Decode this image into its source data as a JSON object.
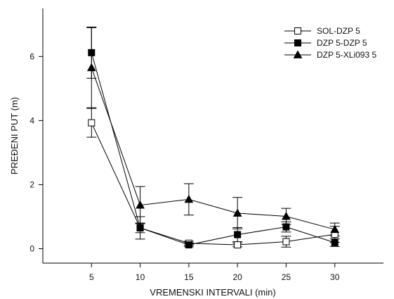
{
  "chart_data": {
    "type": "line",
    "title": "",
    "xlabel": "VREMENSKI INTERVALI (min)",
    "ylabel": "PREĐENI PUT (m)",
    "x": [
      5,
      10,
      15,
      20,
      25,
      30
    ],
    "xlim": [
      0,
      35
    ],
    "ylim": [
      -0.45,
      7.5
    ],
    "x_ticks": [
      "5",
      "10",
      "15",
      "20",
      "25",
      "30"
    ],
    "y_ticks": [
      "0",
      "2",
      "4",
      "6"
    ],
    "grid": false,
    "legend_position": "top-right",
    "series": [
      {
        "name": "SOL-DZP 5",
        "marker": "open-square",
        "color": "#000000",
        "values": [
          3.93,
          0.65,
          0.17,
          0.12,
          0.22,
          0.45
        ],
        "errors": [
          0.45,
          0.15,
          0.06,
          0.06,
          0.17,
          0.25
        ]
      },
      {
        "name": "DZP 5-DZP 5",
        "marker": "filled-square",
        "color": "#000000",
        "values": [
          6.12,
          0.65,
          0.12,
          0.44,
          0.68,
          0.19
        ],
        "errors": [
          0.8,
          0.35,
          0.06,
          0.22,
          0.16,
          0.12
        ]
      },
      {
        "name": "DZP 5-XLi093 5",
        "marker": "filled-triangle",
        "color": "#000000",
        "values": [
          5.65,
          1.36,
          1.54,
          1.11,
          1.01,
          0.6
        ],
        "errors": [
          1.25,
          0.58,
          0.49,
          0.49,
          0.25,
          0.2
        ]
      }
    ]
  }
}
